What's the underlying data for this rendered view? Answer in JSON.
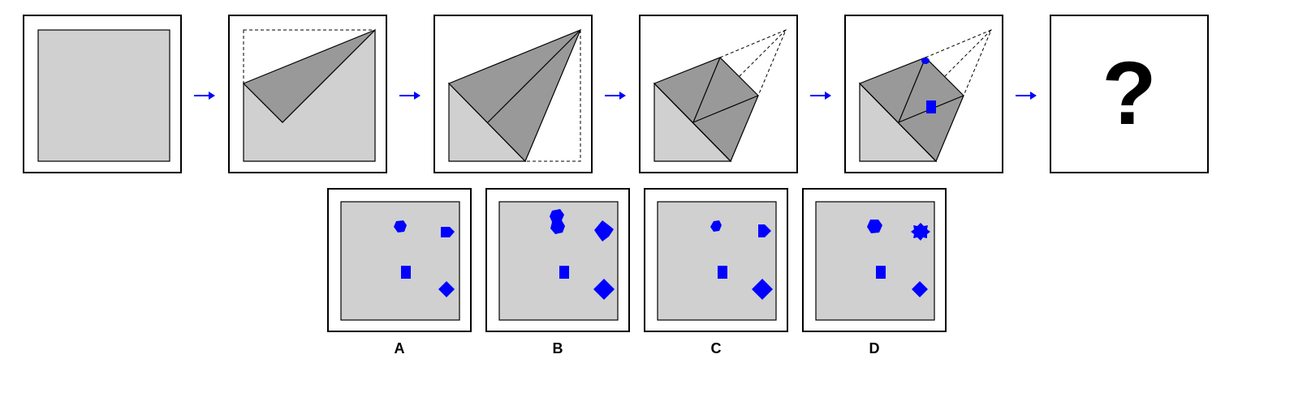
{
  "question_mark": "?",
  "options": [
    {
      "label": "A"
    },
    {
      "label": "B"
    },
    {
      "label": "C"
    },
    {
      "label": "D"
    }
  ],
  "colors": {
    "paper": "#d0d0d0",
    "fold": "#999999",
    "punch": "#0000ff",
    "arrow": "#0000ff",
    "outline": "#000000"
  }
}
